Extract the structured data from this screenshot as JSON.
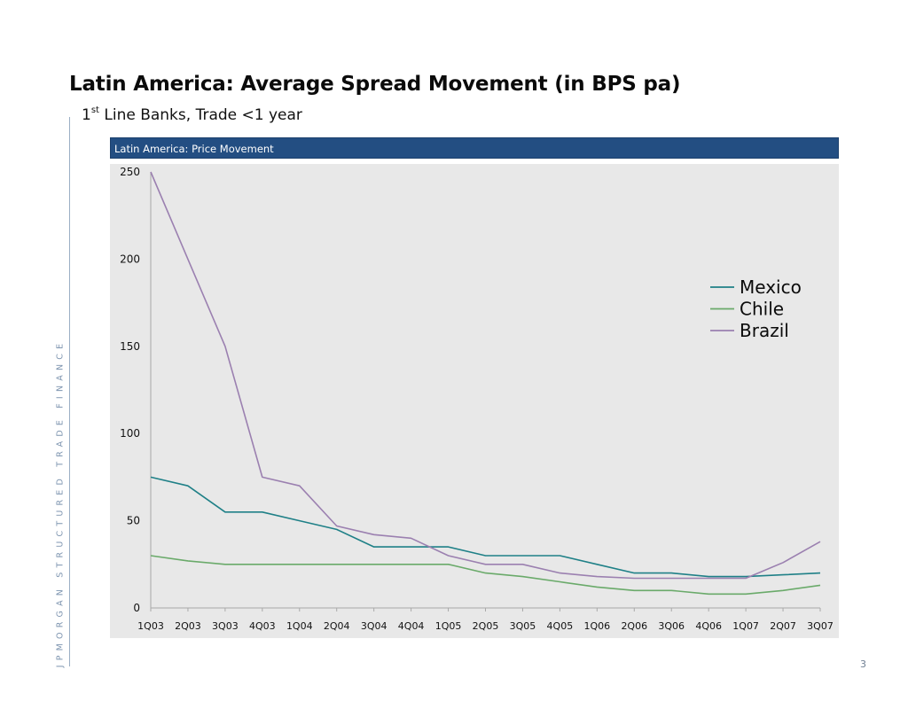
{
  "page": {
    "title": "Latin America: Average Spread Movement (in BPS pa)",
    "subtitle_sup": "st",
    "subtitle_lead": "1",
    "subtitle_rest": " Line Banks, Trade <1 year",
    "side_text": "JPMORGAN STRUCTURED TRADE FINANCE",
    "page_number": "3"
  },
  "colors": {
    "header_bg": "#234e82",
    "plot_bg": "#e8e8e8",
    "mexico": "#1f8087",
    "chile": "#6aaa6a",
    "brazil": "#9b80b0"
  },
  "chart_data": {
    "type": "line",
    "title": "Latin America: Price Movement",
    "categories": [
      "1Q03",
      "2Q03",
      "3Q03",
      "4Q03",
      "1Q04",
      "2Q04",
      "3Q04",
      "4Q04",
      "1Q05",
      "2Q05",
      "3Q05",
      "4Q05",
      "1Q06",
      "2Q06",
      "3Q06",
      "4Q06",
      "1Q07",
      "2Q07",
      "3Q07"
    ],
    "series": [
      {
        "name": "Mexico",
        "values": [
          75,
          70,
          55,
          55,
          50,
          45,
          35,
          35,
          35,
          30,
          30,
          30,
          25,
          20,
          20,
          18,
          18,
          19,
          20
        ]
      },
      {
        "name": "Chile",
        "values": [
          30,
          27,
          25,
          25,
          25,
          25,
          25,
          25,
          25,
          20,
          18,
          15,
          12,
          10,
          10,
          8,
          8,
          10,
          13
        ]
      },
      {
        "name": "Brazil",
        "values": [
          250,
          200,
          150,
          75,
          70,
          47,
          42,
          40,
          30,
          25,
          25,
          20,
          18,
          17,
          17,
          17,
          17,
          26,
          38
        ]
      }
    ],
    "yticks": [
      0,
      50,
      100,
      150,
      200,
      250
    ],
    "ylim": [
      0,
      250
    ],
    "xlabel": "",
    "ylabel": "",
    "grid": false,
    "legend": "right"
  }
}
